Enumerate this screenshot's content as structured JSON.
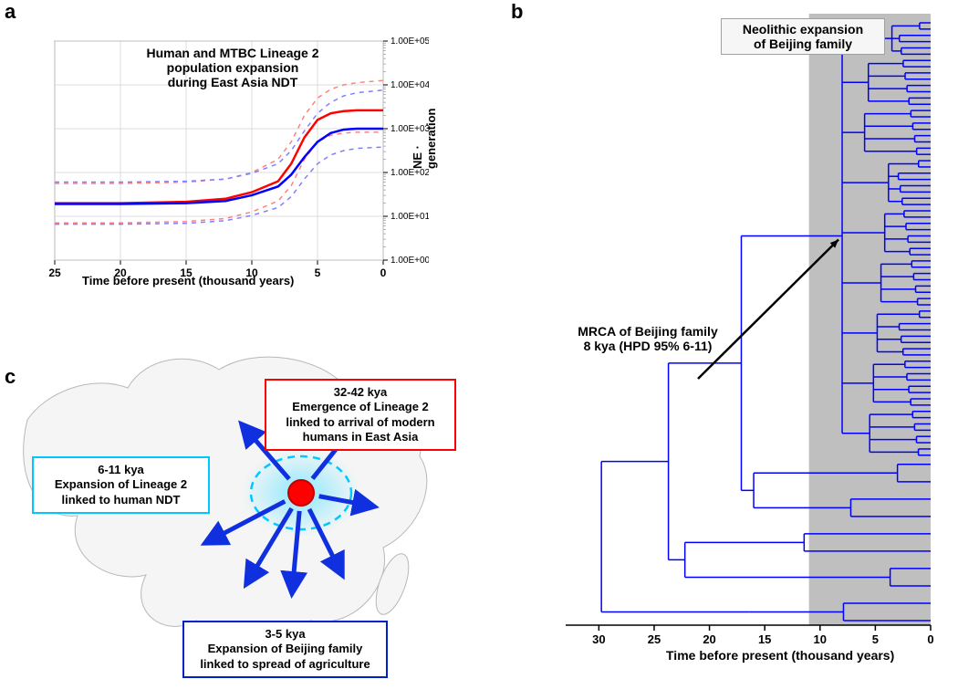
{
  "panel_labels": {
    "a": "a",
    "b": "b",
    "c": "c"
  },
  "chart_a": {
    "type": "line",
    "title_line1": "Human and MTBC Lineage 2",
    "title_line2": "population expansion",
    "title_line3": "during East Asia NDT",
    "xlabel": "Time before present (thousand years)",
    "ylabel": "NE · generation",
    "background_color": "#ffffff",
    "grid_color": "#d0d0d0",
    "axis_color": "#808080",
    "xlim": [
      25,
      0
    ],
    "x_ticks": [
      25,
      20,
      15,
      10,
      5,
      0
    ],
    "ylim_log": [
      0,
      5
    ],
    "y_ticks": [
      0,
      1,
      2,
      3,
      4,
      5
    ],
    "y_tick_labels": [
      "1.00E+00",
      "1.00E+01",
      "1.00E+02",
      "1.00E+03",
      "1.00E+04",
      "1.00E+05"
    ],
    "series": {
      "red_main": {
        "color": "#ff0000",
        "dash": "none",
        "width": 2.5,
        "x": [
          25,
          20,
          15,
          12,
          10,
          8,
          7,
          6,
          5,
          4,
          3,
          2,
          0
        ],
        "y_log": [
          1.3,
          1.3,
          1.33,
          1.4,
          1.55,
          1.8,
          2.2,
          2.8,
          3.2,
          3.35,
          3.4,
          3.42,
          3.42
        ]
      },
      "red_upper": {
        "color": "#ff8080",
        "dash": "5,5",
        "width": 1.5,
        "x": [
          25,
          20,
          15,
          12,
          10,
          8,
          7,
          6,
          5,
          4,
          3,
          2,
          0
        ],
        "y_log": [
          1.75,
          1.75,
          1.78,
          1.85,
          2.0,
          2.3,
          2.7,
          3.3,
          3.7,
          3.9,
          4.0,
          4.05,
          4.1
        ]
      },
      "red_lower": {
        "color": "#ff8080",
        "dash": "5,5",
        "width": 1.5,
        "x": [
          25,
          20,
          15,
          12,
          10,
          8,
          7,
          6,
          5,
          4,
          3,
          2,
          0
        ],
        "y_log": [
          0.85,
          0.85,
          0.88,
          0.95,
          1.1,
          1.35,
          1.7,
          2.3,
          2.7,
          2.85,
          2.9,
          2.92,
          2.92
        ]
      },
      "blue_main": {
        "color": "#0000ff",
        "dash": "none",
        "width": 2.5,
        "x": [
          25,
          20,
          15,
          12,
          10,
          8,
          7,
          6,
          5,
          4,
          3,
          2,
          0
        ],
        "y_log": [
          1.28,
          1.28,
          1.3,
          1.35,
          1.48,
          1.68,
          1.95,
          2.35,
          2.7,
          2.9,
          2.98,
          3.0,
          3.0
        ]
      },
      "blue_upper": {
        "color": "#8080ff",
        "dash": "5,5",
        "width": 1.5,
        "x": [
          25,
          20,
          15,
          12,
          10,
          8,
          7,
          6,
          5,
          4,
          3,
          2,
          0
        ],
        "y_log": [
          1.78,
          1.78,
          1.8,
          1.85,
          1.98,
          2.2,
          2.5,
          2.95,
          3.35,
          3.6,
          3.75,
          3.82,
          3.88
        ]
      },
      "blue_lower": {
        "color": "#8080ff",
        "dash": "5,5",
        "width": 1.5,
        "x": [
          25,
          20,
          15,
          12,
          10,
          8,
          7,
          6,
          5,
          4,
          3,
          2,
          0
        ],
        "y_log": [
          0.82,
          0.82,
          0.84,
          0.9,
          1.02,
          1.2,
          1.45,
          1.85,
          2.2,
          2.4,
          2.5,
          2.55,
          2.58
        ]
      }
    }
  },
  "tree_b": {
    "type": "tree",
    "xlabel": "Time before present (thousand years)",
    "x_ticks": [
      30,
      25,
      20,
      15,
      10,
      5,
      0
    ],
    "xlim": [
      33,
      0
    ],
    "line_color": "#0000ff",
    "line_width": 1.5,
    "neolithic_shade_color": "#bfbfbf",
    "neolithic_range": [
      11,
      0
    ],
    "neolithic_caption_line1": "Neolithic expansion",
    "neolithic_caption_line2": "of Beijing family",
    "mrca_caption_line1": "MRCA of Beijing family",
    "mrca_caption_line2": "8 kya (HPD 95% 6-11)",
    "mrca_arrow_target": [
      8,
      0.55
    ],
    "n_top_tips": 70,
    "n_bottom_tips": 10
  },
  "map_c": {
    "type": "map-infographic",
    "land_fill": "#f5f5f5",
    "land_stroke": "#b8b8b8",
    "center_dot_color": "#ff0000",
    "center_dot_stroke": "#c00000",
    "glow_color": "#7fe7ff",
    "dashed_ellipse_color": "#00c8ff",
    "arrow_color": "#1030e0",
    "callouts": {
      "red": {
        "border_color": "#ff0000",
        "line1": "32-42 kya",
        "line2": "Emergence of Lineage 2",
        "line3": "linked to arrival of modern",
        "line4": "humans in East Asia"
      },
      "cyan": {
        "border_color": "#00c8ff",
        "line1": "6-11 kya",
        "line2": "Expansion of Lineage 2",
        "line3": "linked to human NDT"
      },
      "blue": {
        "border_color": "#0020d0",
        "line1": "3-5 kya",
        "line2": "Expansion of Beijing family",
        "line3": "linked to spread of agriculture"
      }
    }
  }
}
